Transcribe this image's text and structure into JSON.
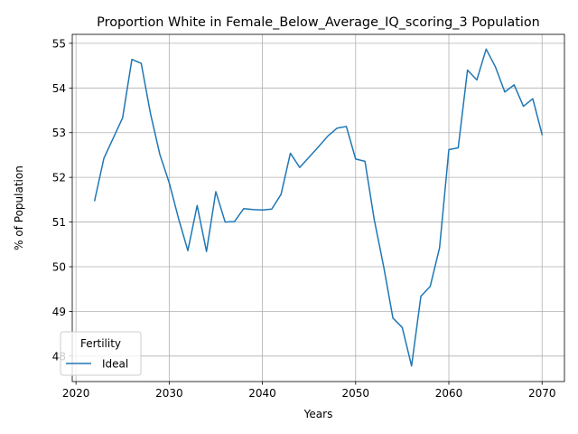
{
  "chart_data": {
    "type": "line",
    "title": "Proportion White in Female_Below_Average_IQ_scoring_3 Population",
    "xlabel": "Years",
    "ylabel": "% of Population",
    "xlim": [
      2019.6,
      2072.4
    ],
    "ylim": [
      47.43,
      55.2
    ],
    "xticks": [
      2020,
      2030,
      2040,
      2050,
      2060,
      2070
    ],
    "yticks": [
      48,
      49,
      50,
      51,
      52,
      53,
      54,
      55
    ],
    "grid": true,
    "legend": {
      "title": "Fertility",
      "placement": "lower-left"
    },
    "series": [
      {
        "name": "Ideal",
        "color": "#1f77b4",
        "x": [
          2022,
          2023,
          2024,
          2025,
          2026,
          2027,
          2028,
          2029,
          2030,
          2031,
          2032,
          2033,
          2034,
          2035,
          2036,
          2037,
          2038,
          2039,
          2040,
          2041,
          2042,
          2043,
          2044,
          2045,
          2046,
          2047,
          2048,
          2049,
          2050,
          2051,
          2052,
          2053,
          2054,
          2055,
          2056,
          2057,
          2058,
          2059,
          2060,
          2061,
          2062,
          2063,
          2064,
          2065,
          2066,
          2067,
          2068,
          2069,
          2070
        ],
        "y": [
          51.48,
          52.43,
          52.88,
          53.33,
          54.64,
          54.55,
          53.42,
          52.51,
          51.88,
          51.08,
          50.36,
          51.37,
          50.34,
          51.68,
          51.0,
          51.01,
          51.3,
          51.28,
          51.27,
          51.29,
          51.62,
          52.54,
          52.22,
          52.45,
          52.68,
          52.92,
          53.1,
          53.14,
          52.41,
          52.36,
          51.05,
          50.01,
          48.85,
          48.64,
          47.78,
          49.34,
          49.56,
          50.42,
          52.62,
          52.66,
          54.4,
          54.18,
          54.87,
          54.47,
          53.91,
          54.07,
          53.59,
          53.76,
          52.96
        ]
      }
    ]
  }
}
